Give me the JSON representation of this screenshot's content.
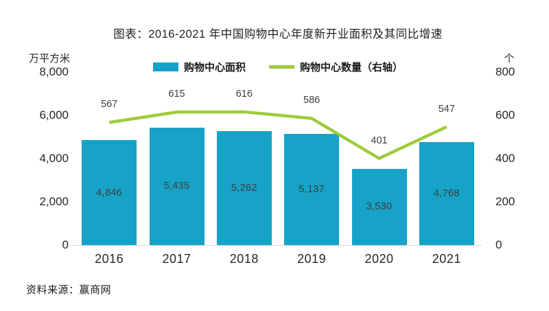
{
  "chart": {
    "title": "图表：2016-2021 年中国购物中心年度新开业面积及其同比增速",
    "source": "资料来源：赢商网"
  },
  "legend": [
    {
      "label": "购物中心面积",
      "swatch": "bar-swatch"
    },
    {
      "label": "购物中心数量（右轴）",
      "swatch": "line-swatch"
    }
  ],
  "colors": {
    "bar": "#16a3c7",
    "line": "#9ecb3b",
    "bar_label": "#3d3d3d",
    "axis_text": "#262626",
    "baseline": "#d9d9d9"
  },
  "chart_data": {
    "type": "bar",
    "subtype": "bar-line-combo",
    "categories": [
      "2016",
      "2017",
      "2018",
      "2019",
      "2020",
      "2021"
    ],
    "series": [
      {
        "name": "购物中心面积",
        "type": "bar",
        "axis": "left",
        "values": [
          4846,
          5435,
          5262,
          5137,
          3530,
          4768
        ],
        "labels": [
          "4,846",
          "5,435",
          "5,262",
          "5,137",
          "3,530",
          "4,768"
        ]
      },
      {
        "name": "购物中心数量（右轴）",
        "type": "line",
        "axis": "right",
        "values": [
          567,
          615,
          616,
          586,
          401,
          547
        ],
        "labels": [
          "567",
          "615",
          "616",
          "586",
          "401",
          "547"
        ]
      }
    ],
    "left_axis": {
      "unit": "万平方米",
      "min": 0,
      "max": 8000,
      "ticks": [
        "8,000",
        "6,000",
        "4,000",
        "2,000",
        "0"
      ]
    },
    "right_axis": {
      "unit": "个",
      "min": 0,
      "max": 800,
      "ticks": [
        "800",
        "600",
        "400",
        "200",
        "0"
      ]
    },
    "grid": false,
    "legend_position": "top-center",
    "title": "图表：2016-2021 年中国购物中心年度新开业面积及其同比增速"
  }
}
